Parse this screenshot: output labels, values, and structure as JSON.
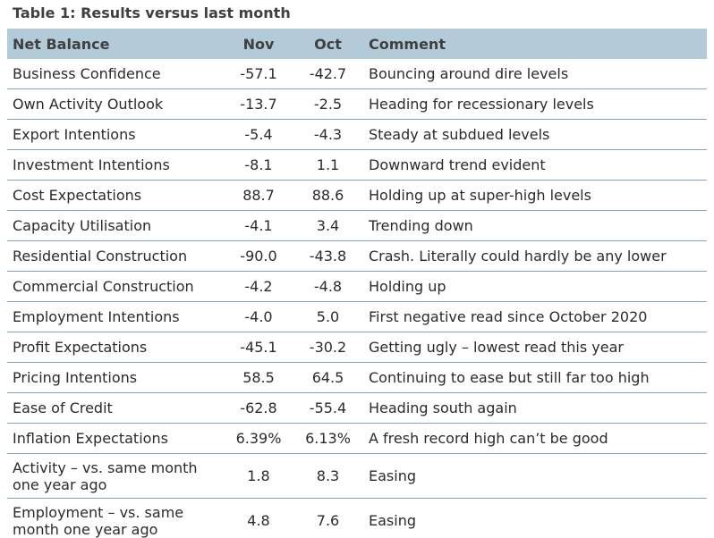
{
  "title": "Table 1: Results versus last month",
  "header": {
    "col1": "Net Balance",
    "col2": "Nov",
    "col3": "Oct",
    "col4": "Comment"
  },
  "rows": [
    {
      "label": "Business Confidence",
      "nov": "-57.1",
      "oct": "-42.7",
      "comment": "Bouncing around dire levels"
    },
    {
      "label": "Own Activity Outlook",
      "nov": "-13.7",
      "oct": "-2.5",
      "comment": "Heading for recessionary levels"
    },
    {
      "label": "Export Intentions",
      "nov": "-5.4",
      "oct": "-4.3",
      "comment": "Steady at subdued levels"
    },
    {
      "label": "Investment Intentions",
      "nov": "-8.1",
      "oct": "1.1",
      "comment": "Downward trend evident"
    },
    {
      "label": "Cost Expectations",
      "nov": "88.7",
      "oct": "88.6",
      "comment": "Holding up at super-high levels"
    },
    {
      "label": "Capacity Utilisation",
      "nov": "-4.1",
      "oct": "3.4",
      "comment": "Trending down"
    },
    {
      "label": "Residential Construction",
      "nov": "-90.0",
      "oct": "-43.8",
      "comment": "Crash. Literally could hardly be any lower"
    },
    {
      "label": "Commercial Construction",
      "nov": "-4.2",
      "oct": "-4.8",
      "comment": "Holding up"
    },
    {
      "label": "Employment Intentions",
      "nov": "-4.0",
      "oct": "5.0",
      "comment": "First negative read since October 2020"
    },
    {
      "label": "Profit Expectations",
      "nov": "-45.1",
      "oct": "-30.2",
      "comment": "Getting ugly – lowest read this year"
    },
    {
      "label": "Pricing Intentions",
      "nov": "58.5",
      "oct": "64.5",
      "comment": "Continuing to ease but still far too high"
    },
    {
      "label": "Ease of Credit",
      "nov": "-62.8",
      "oct": "-55.4",
      "comment": "Heading south again"
    },
    {
      "label": "Inflation Expectations",
      "nov": "6.39%",
      "oct": "6.13%",
      "comment": "A fresh record high can’t be good"
    },
    {
      "label": "Activity – vs. same month one year ago",
      "nov": "1.8",
      "oct": "8.3",
      "comment": "Easing"
    },
    {
      "label": "Employment – vs. same month one year ago",
      "nov": "4.8",
      "oct": "7.6",
      "comment": "Easing"
    }
  ],
  "colors": {
    "header_bg": "#b3cad8",
    "row_divider": "#7fa6bf",
    "text": "#2b2b2b"
  }
}
